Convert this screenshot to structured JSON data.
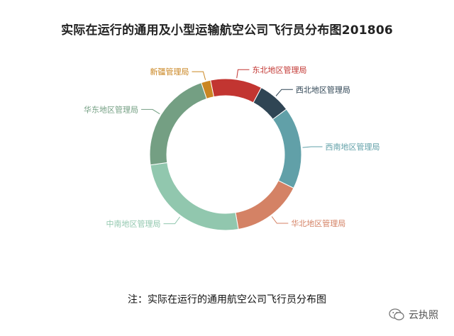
{
  "title": "实际在运行的通用及小型运输航空公司飞行员分布图201806",
  "note": "注：实际在运行的通用航空公司飞行员分布图",
  "watermark": {
    "text": "云执照",
    "icon": "wechat-icon"
  },
  "chart_data": {
    "type": "pie",
    "style": "donut",
    "title": "实际在运行的通用及小型运输航空公司飞行员分布图201806",
    "legend": "none",
    "slices": [
      {
        "label": "东北地区管理局",
        "value": 11,
        "color": "#c23531"
      },
      {
        "label": "西北地区管理局",
        "value": 7,
        "color": "#2f4554"
      },
      {
        "label": "西南地区管理局",
        "value": 17.5,
        "color": "#61a0a8"
      },
      {
        "label": "华北地区管理局",
        "value": 15,
        "color": "#d48265"
      },
      {
        "label": "中南地区管理局",
        "value": 25.5,
        "color": "#91c7ae"
      },
      {
        "label": "华东地区管理局",
        "value": 22,
        "color": "#749f83"
      },
      {
        "label": "新疆管理局",
        "value": 2,
        "color": "#ca8622"
      }
    ]
  }
}
